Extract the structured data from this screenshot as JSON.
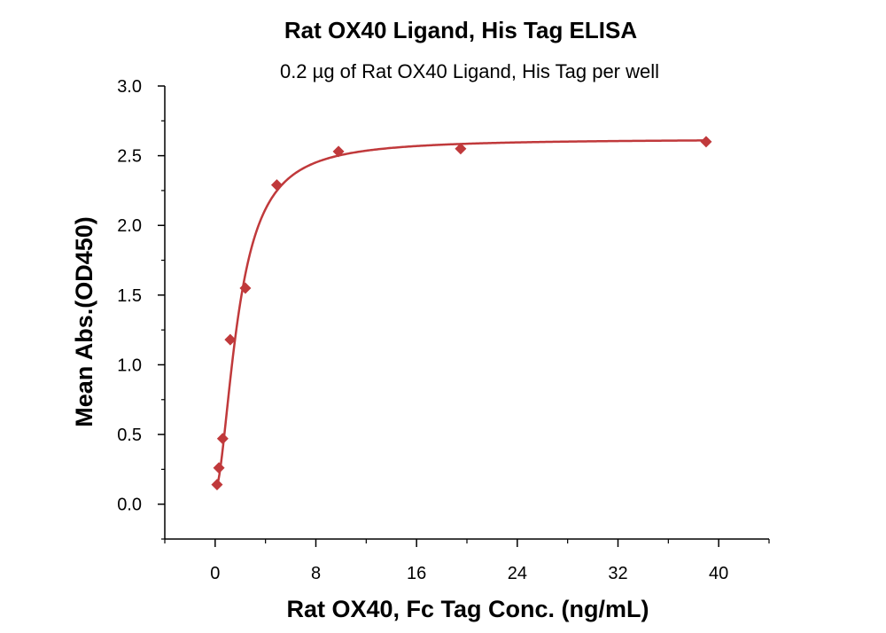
{
  "chart_data": {
    "type": "scatter",
    "title": "Rat OX40 Ligand, His Tag ELISA",
    "subtitle": "0.2 µg of Rat OX40 Ligand, His Tag per well",
    "xlabel": "Rat OX40, Fc Tag Conc. (ng/mL)",
    "ylabel": "Mean Abs.(OD450)",
    "xlim": [
      -4,
      44
    ],
    "ylim": [
      -0.25,
      3.0
    ],
    "x_ticks": [
      0,
      8,
      16,
      24,
      32,
      40
    ],
    "y_ticks": [
      0.0,
      0.5,
      1.0,
      1.5,
      2.0,
      2.5,
      3.0
    ],
    "x_tick_labels": [
      "0",
      "8",
      "16",
      "24",
      "32",
      "40"
    ],
    "y_tick_labels": [
      "0.0",
      "0.5",
      "1.0",
      "1.5",
      "2.0",
      "2.5",
      "3.0"
    ],
    "grid": false,
    "marker": "diamond",
    "series": [
      {
        "x": [
          0.15,
          0.3,
          0.6,
          1.2,
          2.4,
          4.9,
          9.8,
          19.5,
          39.0
        ],
        "y": [
          0.14,
          0.26,
          0.47,
          1.18,
          1.55,
          2.29,
          2.53,
          2.55,
          2.6
        ],
        "color": "#c0393b",
        "fit": "four-parameter logistic curve"
      }
    ]
  }
}
